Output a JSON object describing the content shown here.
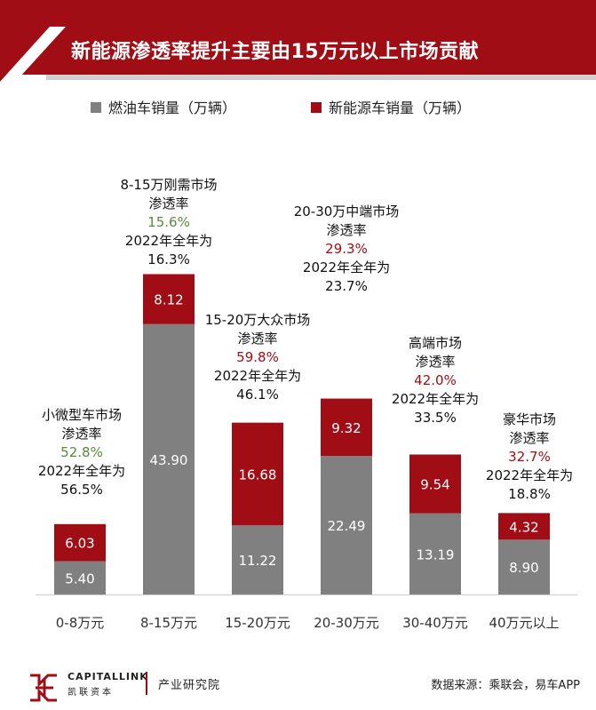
{
  "title": "新能源渗透率提升主要由15万元以上市场贡献",
  "legend": [
    {
      "label": "燃油车销量（万辆）",
      "color": "#808080"
    },
    {
      "label": "新能源车销量（万辆）",
      "color": "#a00d14"
    }
  ],
  "colors": {
    "brand": "#a00d14",
    "gray": "#808080",
    "green": "#5a8a3a",
    "red": "#a00d14"
  },
  "chart_data": {
    "type": "bar",
    "stacked": true,
    "categories": [
      "0-8万元",
      "8-15万元",
      "15-20万元",
      "20-30万元",
      "30-40万元",
      "40万元以上"
    ],
    "series": [
      {
        "name": "燃油车销量（万辆）",
        "values": [
          5.4,
          43.9,
          11.22,
          22.49,
          13.19,
          8.9
        ]
      },
      {
        "name": "新能源车销量（万辆）",
        "values": [
          6.03,
          8.12,
          16.68,
          9.32,
          9.54,
          4.32
        ]
      }
    ],
    "value_labels": {
      "fuel": [
        "5.40",
        "43.90",
        "11.22",
        "22.49",
        "13.19",
        "8.90"
      ],
      "nev": [
        "6.03",
        "8.12",
        "16.68",
        "9.32",
        "9.54",
        "4.32"
      ]
    }
  },
  "annotations": [
    {
      "segment": "小微型车市场",
      "label": "渗透率",
      "penetration": "52.8%",
      "pen_color": "green",
      "line2022": "2022年全年为",
      "value2022": "56.5%"
    },
    {
      "segment": "8-15万刚需市场",
      "label": "渗透率",
      "penetration": "15.6%",
      "pen_color": "green",
      "line2022": "2022年全年为",
      "value2022": "16.3%"
    },
    {
      "segment": "15-20万大众市场",
      "label": "渗透率",
      "penetration": "59.8%",
      "pen_color": "red",
      "line2022": "2022年全年为",
      "value2022": "46.1%"
    },
    {
      "segment": "20-30万中端市场",
      "label": "渗透率",
      "penetration": "29.3%",
      "pen_color": "red",
      "line2022": "2022年全年为",
      "value2022": "23.7%"
    },
    {
      "segment": "高端市场",
      "label": "渗透率",
      "penetration": "42.0%",
      "pen_color": "red",
      "line2022": "2022年全年为",
      "value2022": "33.5%"
    },
    {
      "segment": "豪华市场",
      "label": "渗透率",
      "penetration": "32.7%",
      "pen_color": "red",
      "line2022": "2022年全年为",
      "value2022": "18.8%"
    }
  ],
  "footer": {
    "brand_en": "CAPITALLINK",
    "brand_cn": "凯联资本",
    "dept": "产业研究院",
    "source": "数据来源：乘联会，易车APP"
  }
}
